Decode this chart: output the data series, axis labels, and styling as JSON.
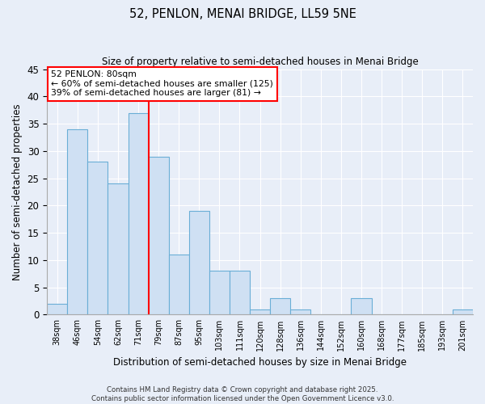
{
  "title": "52, PENLON, MENAI BRIDGE, LL59 5NE",
  "subtitle": "Size of property relative to semi-detached houses in Menai Bridge",
  "xlabel": "Distribution of semi-detached houses by size in Menai Bridge",
  "ylabel": "Number of semi-detached properties",
  "categories": [
    "38sqm",
    "46sqm",
    "54sqm",
    "62sqm",
    "71sqm",
    "79sqm",
    "87sqm",
    "95sqm",
    "103sqm",
    "111sqm",
    "120sqm",
    "128sqm",
    "136sqm",
    "144sqm",
    "152sqm",
    "160sqm",
    "168sqm",
    "177sqm",
    "185sqm",
    "193sqm",
    "201sqm"
  ],
  "values": [
    2,
    34,
    28,
    24,
    37,
    29,
    11,
    19,
    8,
    8,
    1,
    3,
    1,
    0,
    0,
    3,
    0,
    0,
    0,
    0,
    1
  ],
  "bar_color": "#cfe0f3",
  "bar_edge_color": "#6aaed6",
  "vline_index": 5,
  "vline_color": "red",
  "ylim": [
    0,
    45
  ],
  "yticks": [
    0,
    5,
    10,
    15,
    20,
    25,
    30,
    35,
    40,
    45
  ],
  "annotation_title": "52 PENLON: 80sqm",
  "annotation_line1": "← 60% of semi-detached houses are smaller (125)",
  "annotation_line2": "39% of semi-detached houses are larger (81) →",
  "annotation_box_color": "white",
  "annotation_box_edge": "red",
  "bg_color": "#e8eef8",
  "grid_color": "#ffffff",
  "footer_line1": "Contains HM Land Registry data © Crown copyright and database right 2025.",
  "footer_line2": "Contains public sector information licensed under the Open Government Licence v3.0."
}
